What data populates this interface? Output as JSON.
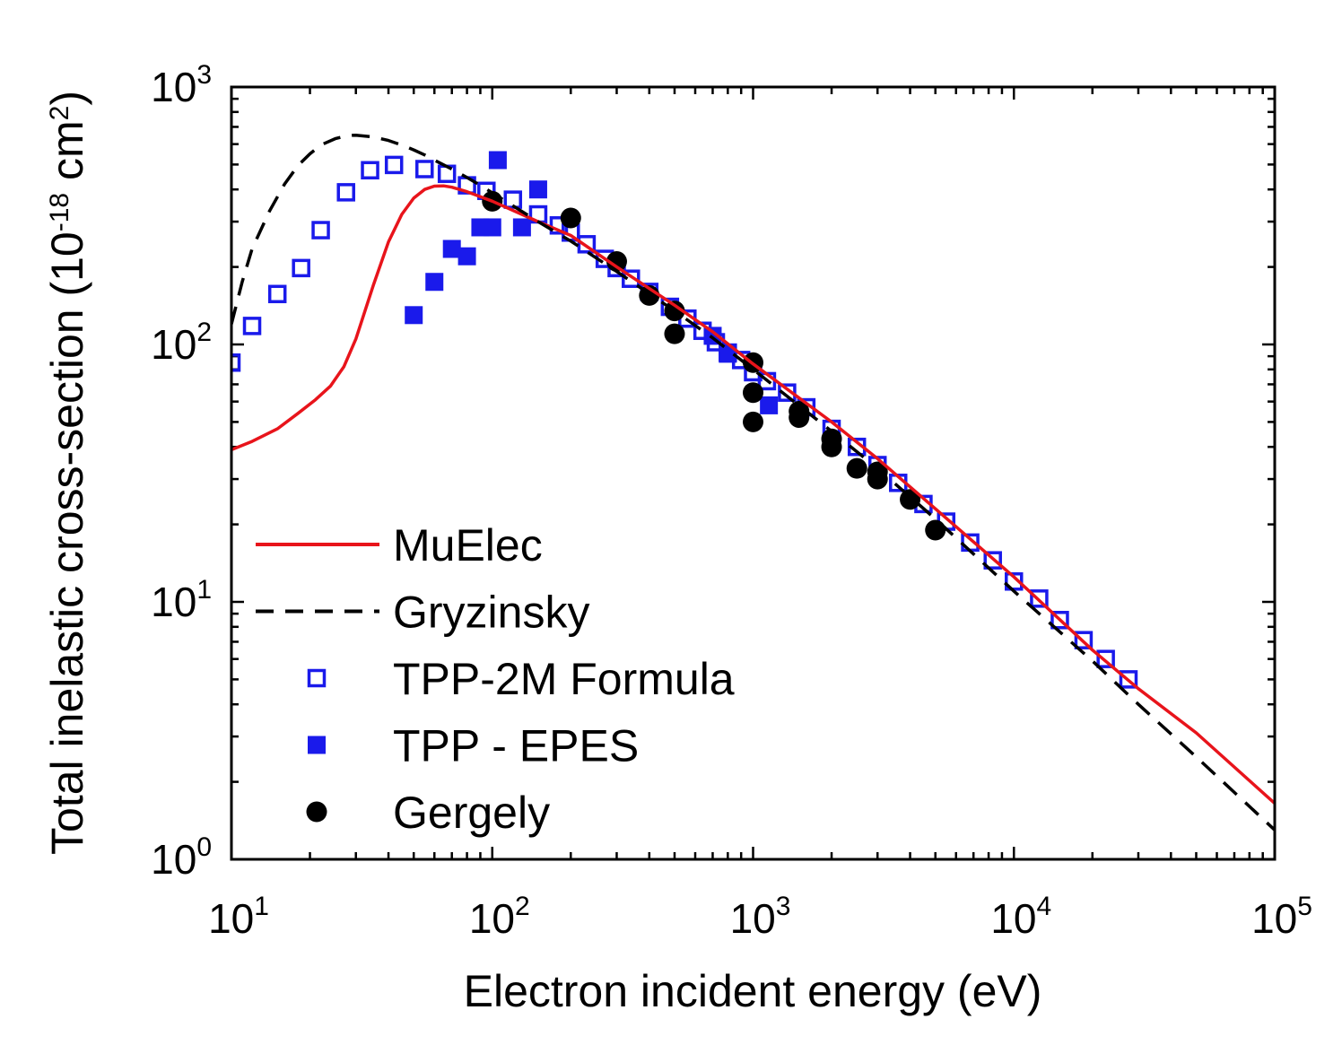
{
  "chart_data": {
    "type": "scatter",
    "xlabel": "Electron incident energy (eV)",
    "ylabel": {
      "main": "Total inelastic cross-section (10",
      "exp": "-18",
      "mid": " cm",
      "exp2": "2",
      "close": ")"
    },
    "x_scale": "log",
    "y_scale": "log",
    "xlim": [
      10,
      100000
    ],
    "ylim": [
      1,
      1000
    ],
    "x_ticks": [
      {
        "base": "10",
        "exp": "1",
        "value": 10
      },
      {
        "base": "10",
        "exp": "2",
        "value": 100
      },
      {
        "base": "10",
        "exp": "3",
        "value": 1000
      },
      {
        "base": "10",
        "exp": "4",
        "value": 10000
      },
      {
        "base": "10",
        "exp": "5",
        "value": 100000
      }
    ],
    "y_ticks": [
      {
        "base": "10",
        "exp": "0",
        "value": 1
      },
      {
        "base": "10",
        "exp": "1",
        "value": 10
      },
      {
        "base": "10",
        "exp": "2",
        "value": 100
      },
      {
        "base": "10",
        "exp": "3",
        "value": 1000
      }
    ],
    "grid": false,
    "legend_position": "bottom-left",
    "series": [
      {
        "name": "MuElec",
        "style": "line",
        "color": "#e8141b",
        "x": [
          10,
          12,
          15,
          18,
          21,
          24,
          27,
          30,
          35,
          40,
          45,
          50,
          55,
          60,
          65,
          70,
          80,
          90,
          100,
          150,
          200,
          300,
          500,
          700,
          1000,
          2000,
          3000,
          5000,
          10000,
          20000,
          30000,
          50000,
          100000
        ],
        "y": [
          39,
          42,
          47,
          54,
          61,
          69,
          82,
          105,
          170,
          250,
          320,
          370,
          400,
          412,
          413,
          408,
          392,
          375,
          360,
          300,
          265,
          200,
          142,
          112,
          84,
          50,
          36,
          23,
          12.5,
          6.5,
          4.6,
          3.1,
          1.65
        ]
      },
      {
        "name": "Gryzinsky",
        "style": "dashed-line",
        "color": "#000000",
        "x": [
          10,
          11,
          12,
          14,
          16,
          18,
          20,
          22,
          25,
          28,
          30,
          35,
          40,
          45,
          50,
          55,
          60,
          70,
          80,
          90,
          100,
          150,
          200,
          300,
          500,
          700,
          1000,
          2000,
          3000,
          5000,
          10000,
          20000,
          30000,
          50000,
          100000
        ],
        "y": [
          120,
          175,
          235,
          330,
          420,
          495,
          550,
          595,
          630,
          648,
          650,
          640,
          620,
          595,
          570,
          545,
          520,
          480,
          445,
          415,
          388,
          300,
          252,
          192,
          135,
          106,
          80,
          46,
          33,
          21,
          11,
          5.9,
          4.0,
          2.5,
          1.3
        ]
      },
      {
        "name": "TPP-2M Formula",
        "style": "open-square",
        "color": "#1a1aeb",
        "x": [
          10,
          12,
          15,
          18.5,
          22,
          27.5,
          34,
          42,
          55,
          67,
          80,
          95,
          120,
          150,
          180,
          200,
          230,
          270,
          300,
          340,
          400,
          480,
          560,
          640,
          720,
          800,
          900,
          1000,
          1130,
          1350,
          1600,
          2000,
          2500,
          3000,
          3600,
          4500,
          5500,
          6800,
          8300,
          10000,
          12500,
          15000,
          18500,
          22500,
          27500
        ],
        "y": [
          85,
          118,
          157,
          198,
          278,
          390,
          475,
          498,
          480,
          460,
          415,
          395,
          365,
          320,
          290,
          272,
          245,
          215,
          198,
          180,
          160,
          140,
          126,
          113,
          102,
          93,
          87,
          78,
          72,
          65,
          57,
          47,
          40,
          34,
          29,
          24,
          20.5,
          17,
          14.5,
          12,
          10.3,
          8.5,
          7.1,
          6,
          5
        ]
      },
      {
        "name": "TPP - EPES",
        "style": "filled-square",
        "color": "#1a1aeb",
        "x": [
          50,
          60,
          70,
          80,
          90,
          100,
          105,
          130,
          150,
          700,
          800,
          1150
        ],
        "y": [
          130,
          175,
          235,
          220,
          285,
          285,
          520,
          285,
          400,
          108,
          92,
          58
        ]
      },
      {
        "name": "Gergely",
        "style": "filled-circle",
        "color": "#000000",
        "x": [
          100,
          200,
          300,
          400,
          500,
          500,
          1000,
          1000,
          1000,
          1500,
          1500,
          2000,
          2000,
          2500,
          3000,
          3000,
          4000,
          5000
        ],
        "y": [
          360,
          310,
          210,
          155,
          135,
          110,
          85,
          65,
          50,
          55,
          52,
          43,
          40,
          33,
          32,
          30,
          25,
          19
        ]
      }
    ]
  }
}
